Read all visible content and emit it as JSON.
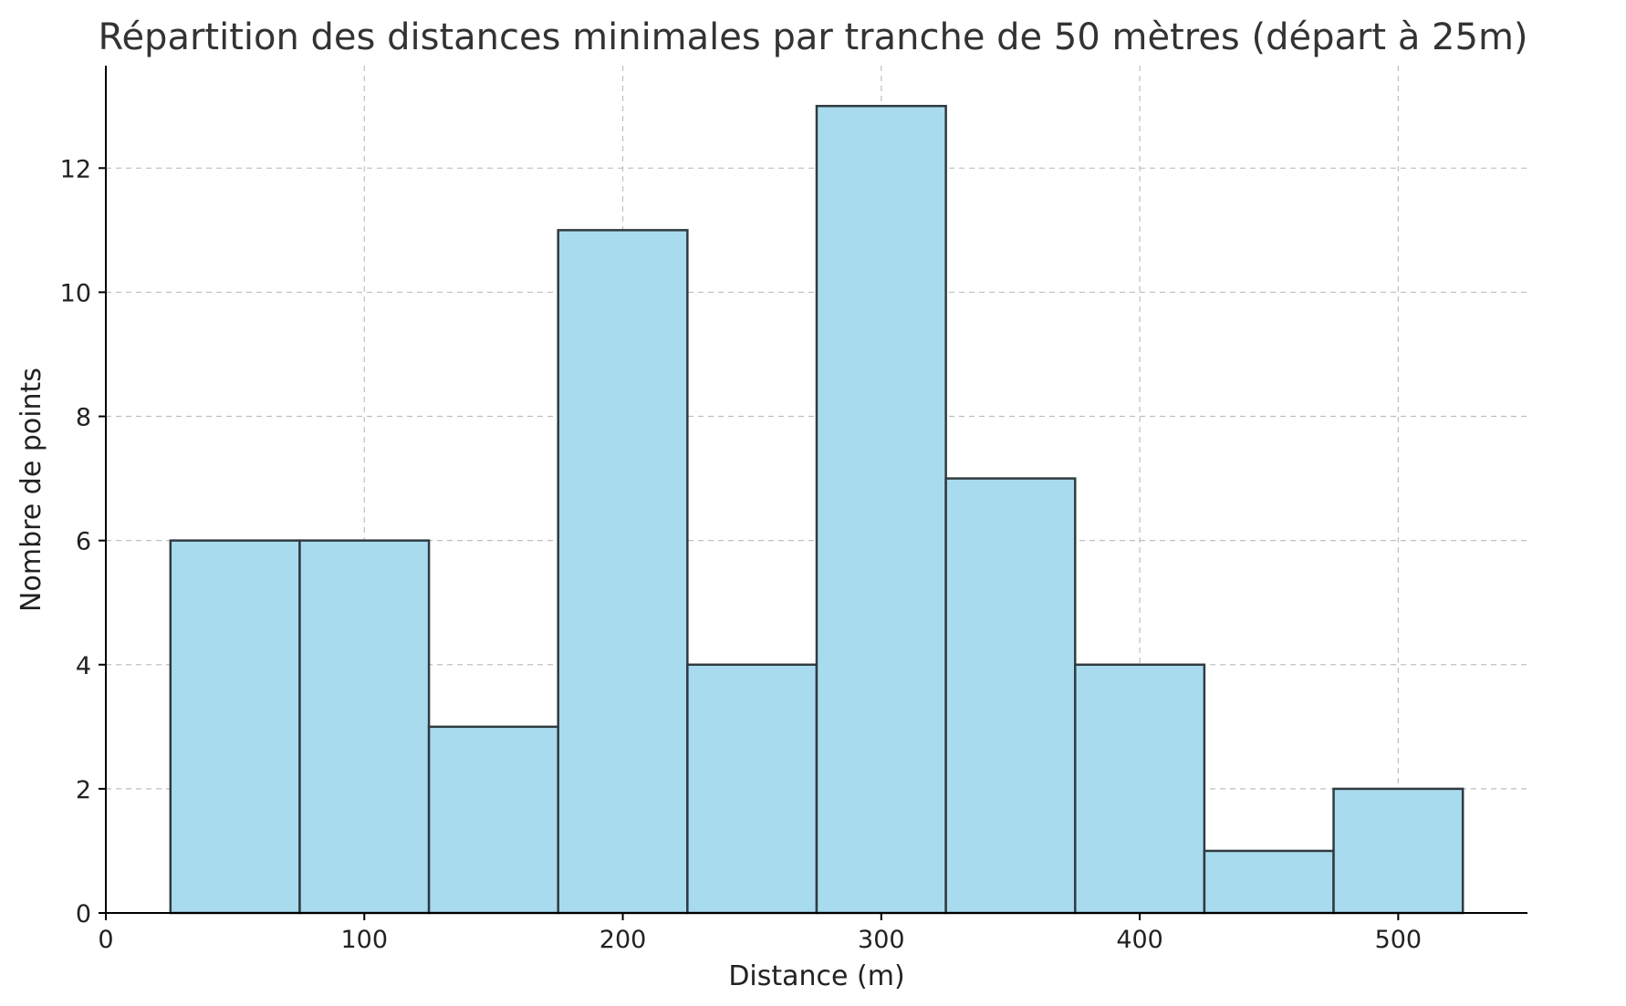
{
  "chart_data": {
    "type": "bar",
    "title": "Répartition des distances minimales par tranche de 50 mètres (départ à 25m)",
    "xlabel": "Distance (m)",
    "ylabel": "Nombre de points",
    "xlim": [
      0,
      550
    ],
    "ylim": [
      0,
      13.65
    ],
    "xticks": [
      0,
      100,
      200,
      300,
      400,
      500
    ],
    "yticks": [
      0,
      2,
      4,
      6,
      8,
      10,
      12
    ],
    "bins": [
      {
        "start": 25,
        "end": 75,
        "value": 6
      },
      {
        "start": 75,
        "end": 125,
        "value": 6
      },
      {
        "start": 125,
        "end": 175,
        "value": 3
      },
      {
        "start": 175,
        "end": 225,
        "value": 11
      },
      {
        "start": 225,
        "end": 275,
        "value": 4
      },
      {
        "start": 275,
        "end": 325,
        "value": 13
      },
      {
        "start": 325,
        "end": 375,
        "value": 7
      },
      {
        "start": 375,
        "end": 425,
        "value": 4
      },
      {
        "start": 425,
        "end": 475,
        "value": 1
      },
      {
        "start": 475,
        "end": 525,
        "value": 2
      }
    ],
    "grid": true,
    "bar_color": "#a9dbef",
    "edge_color": "#2f3b3f"
  }
}
